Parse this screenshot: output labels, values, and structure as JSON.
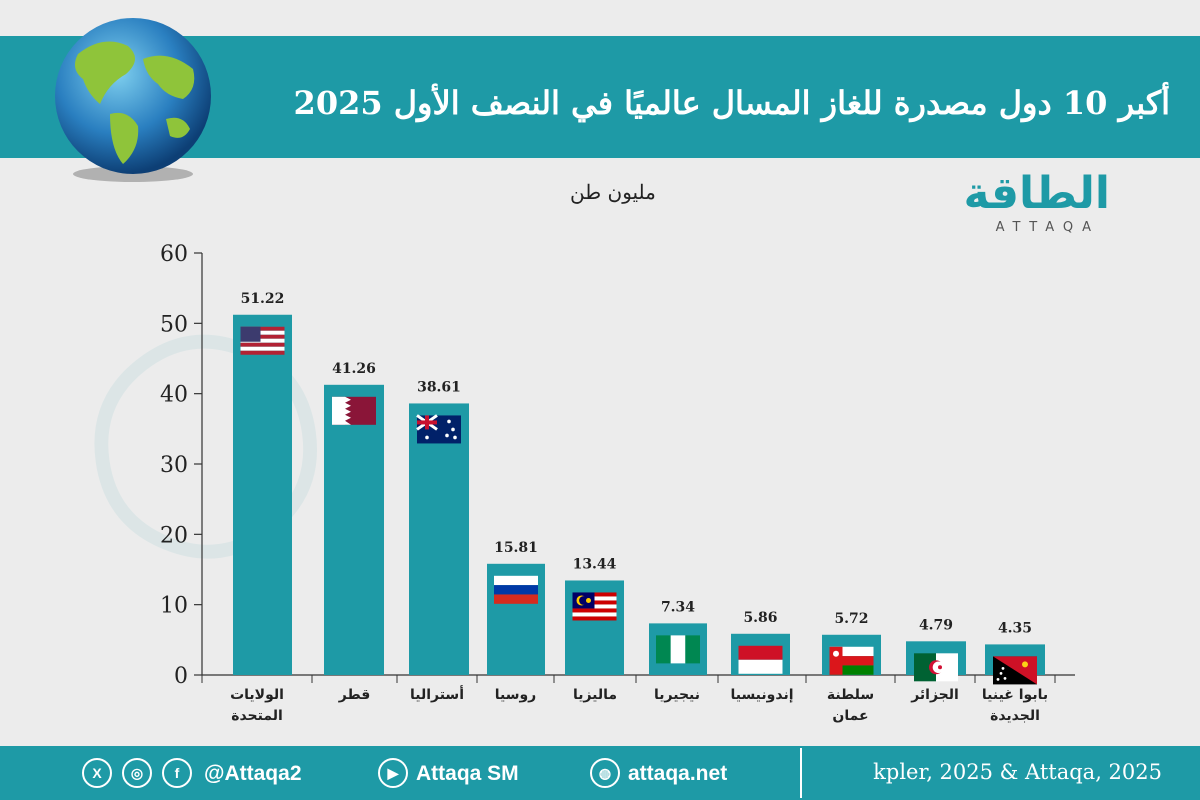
{
  "title": "أكبر 10 دول مصدرة للغاز المسال عالميًا في النصف الأول 2025",
  "unit_label": "مليون طن",
  "logo": {
    "arabic": "الطاقة",
    "english": "ATTAQA"
  },
  "chart_data": {
    "type": "bar",
    "title": "أكبر 10 دول مصدرة للغاز المسال عالميًا في النصف الأول 2025",
    "ylabel": "مليون طن",
    "ylim": [
      0,
      60
    ],
    "yticks": [
      0,
      10,
      20,
      30,
      40,
      50,
      60
    ],
    "grid": false,
    "bar_color": "#1e9aa6",
    "categories": [
      [
        "الولايات",
        "المتحدة"
      ],
      [
        "قطر"
      ],
      [
        "أستراليا"
      ],
      [
        "روسيا"
      ],
      [
        "ماليزيا"
      ],
      [
        "نيجيريا"
      ],
      [
        "إندونيسيا"
      ],
      [
        "سلطنة",
        "عمان"
      ],
      [
        "الجزائر"
      ],
      [
        "بابوا غينيا",
        "الجديدة"
      ]
    ],
    "values": [
      51.22,
      41.26,
      38.61,
      15.81,
      13.44,
      7.34,
      5.86,
      5.72,
      4.79,
      4.35
    ],
    "value_labels": [
      "51.22",
      "41.26",
      "38.61",
      "15.81",
      "13.44",
      "7.34",
      "5.86",
      "5.72",
      "4.79",
      "4.35"
    ],
    "flags": [
      "us-flag",
      "qatar-flag",
      "australia-flag",
      "russia-flag",
      "malaysia-flag",
      "nigeria-flag",
      "indonesia-flag",
      "oman-flag",
      "algeria-flag",
      "png-flag"
    ]
  },
  "footer": {
    "social_handle": "@Attaqa2",
    "youtube": "Attaqa SM",
    "website": "attaqa.net",
    "source": "kpler, 2025 & Attaqa, 2025",
    "icons": [
      "x-icon",
      "instagram-icon",
      "facebook-icon",
      "youtube-icon",
      "web-icon"
    ]
  },
  "colors": {
    "accent": "#1e9aa6",
    "background": "#ececec"
  }
}
